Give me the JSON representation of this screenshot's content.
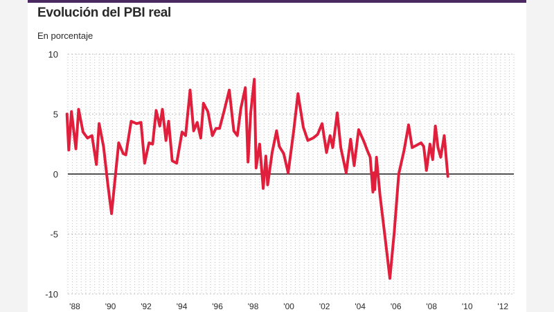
{
  "header": {
    "title": "Evolución del PBI real",
    "subtitle": "En porcentaje"
  },
  "colors": {
    "line": "#e01f3d",
    "grid": "#bdbdbd",
    "zero": "#1a1a1a",
    "accent": "#4a2860"
  },
  "chart_data": {
    "type": "line",
    "title": "Evolución del PBI real",
    "subtitle": "En porcentaje",
    "xlabel": "",
    "ylabel": "",
    "ylim": [
      -10,
      10
    ],
    "xlim": [
      1988,
      2013
    ],
    "yticks": [
      10,
      5,
      0,
      -5,
      -10
    ],
    "xticks": [
      "'88",
      "'90",
      "'92",
      "'94",
      "'96",
      "'98",
      "'00",
      "'02",
      "'04",
      "'06",
      "'08",
      "'10",
      "'12"
    ],
    "grid": "horizontal dotted, vertical dotted per quarter",
    "series": [
      {
        "points": [
          [
            1987.95,
            5.0
          ],
          [
            1988.05,
            2.0
          ],
          [
            1988.2,
            5.2
          ],
          [
            1988.45,
            2.1
          ],
          [
            1988.6,
            5.4
          ],
          [
            1988.85,
            3.5
          ],
          [
            1989.1,
            3.0
          ],
          [
            1989.35,
            3.2
          ],
          [
            1989.6,
            0.8
          ],
          [
            1989.75,
            4.2
          ],
          [
            1990.0,
            2.3
          ],
          [
            1990.25,
            -1.0
          ],
          [
            1990.45,
            -3.3
          ],
          [
            1990.85,
            2.6
          ],
          [
            1991.1,
            1.7
          ],
          [
            1991.25,
            1.6
          ],
          [
            1991.55,
            4.4
          ],
          [
            1991.85,
            4.2
          ],
          [
            1992.1,
            4.3
          ],
          [
            1992.3,
            0.9
          ],
          [
            1992.55,
            2.6
          ],
          [
            1992.75,
            2.5
          ],
          [
            1992.95,
            5.3
          ],
          [
            1993.15,
            4.0
          ],
          [
            1993.3,
            5.4
          ],
          [
            1993.5,
            2.8
          ],
          [
            1993.65,
            4.4
          ],
          [
            1993.85,
            1.1
          ],
          [
            1994.1,
            0.9
          ],
          [
            1994.4,
            3.5
          ],
          [
            1994.6,
            3.2
          ],
          [
            1994.85,
            7.0
          ],
          [
            1995.05,
            3.6
          ],
          [
            1995.25,
            4.3
          ],
          [
            1995.45,
            3.0
          ],
          [
            1995.6,
            5.9
          ],
          [
            1995.85,
            5.2
          ],
          [
            1996.1,
            3.2
          ],
          [
            1996.3,
            3.8
          ],
          [
            1996.5,
            3.8
          ],
          [
            1996.75,
            5.2
          ],
          [
            1997.05,
            7.0
          ],
          [
            1997.3,
            3.6
          ],
          [
            1997.5,
            3.2
          ],
          [
            1997.7,
            5.5
          ],
          [
            1997.95,
            7.2
          ],
          [
            1998.1,
            1.0
          ],
          [
            1998.25,
            5.1
          ],
          [
            1998.45,
            7.9
          ],
          [
            1998.55,
            0.5
          ],
          [
            1998.75,
            2.5
          ],
          [
            1998.95,
            -1.2
          ],
          [
            1999.1,
            1.5
          ],
          [
            1999.2,
            -0.9
          ],
          [
            1999.45,
            1.8
          ],
          [
            1999.7,
            3.6
          ],
          [
            1999.85,
            2.3
          ],
          [
            2000.1,
            1.7
          ],
          [
            2000.35,
            0.1
          ],
          [
            2000.65,
            3.5
          ],
          [
            2000.9,
            6.7
          ],
          [
            2001.2,
            3.9
          ],
          [
            2001.45,
            2.8
          ],
          [
            2001.75,
            3.0
          ],
          [
            2002.0,
            3.3
          ],
          [
            2002.25,
            4.2
          ],
          [
            2002.5,
            1.8
          ],
          [
            2002.7,
            3.2
          ],
          [
            2002.85,
            2.2
          ],
          [
            2003.1,
            5.1
          ],
          [
            2003.3,
            2.2
          ],
          [
            2003.6,
            0.1
          ],
          [
            2003.85,
            2.9
          ],
          [
            2004.05,
            0.7
          ],
          [
            2004.3,
            3.7
          ],
          [
            2004.6,
            2.7
          ],
          [
            2004.8,
            1.9
          ],
          [
            2004.95,
            1.4
          ],
          [
            2005.1,
            -1.5
          ],
          [
            2005.15,
            0.1
          ],
          [
            2005.2,
            -1.3
          ],
          [
            2005.3,
            1.4
          ],
          [
            2005.5,
            -1.8
          ],
          [
            2005.8,
            -5.5
          ],
          [
            2006.05,
            -8.7
          ],
          [
            2006.3,
            -4.8
          ],
          [
            2006.55,
            0.0
          ],
          [
            2006.85,
            2.0
          ],
          [
            2007.1,
            4.1
          ],
          [
            2007.3,
            2.2
          ],
          [
            2007.55,
            2.4
          ],
          [
            2007.8,
            2.6
          ],
          [
            2007.95,
            2.3
          ],
          [
            2008.1,
            0.3
          ],
          [
            2008.3,
            2.5
          ],
          [
            2008.45,
            1.2
          ],
          [
            2008.6,
            4.0
          ],
          [
            2008.75,
            2.2
          ],
          [
            2008.9,
            1.4
          ],
          [
            2009.1,
            3.2
          ],
          [
            2009.3,
            -0.2
          ]
        ]
      }
    ]
  }
}
